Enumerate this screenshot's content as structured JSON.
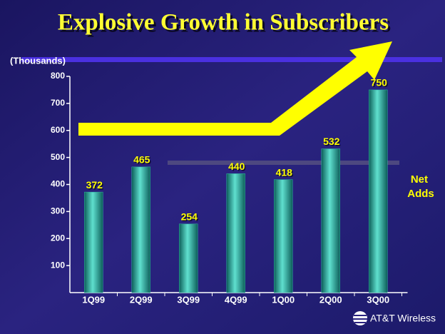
{
  "chart_data": {
    "type": "bar",
    "title": "Explosive Growth in Subscribers",
    "y_label": "(Thousands)",
    "annotation": "Net Adds",
    "logo": "AT&T Wireless",
    "categories": [
      "1Q99",
      "2Q99",
      "3Q99",
      "4Q99",
      "1Q00",
      "2Q00",
      "3Q00"
    ],
    "values": [
      372,
      465,
      254,
      440,
      418,
      532,
      750
    ],
    "color": "#2fb3a3",
    "ylim": [
      0,
      800
    ],
    "yticks": [
      100,
      200,
      300,
      400,
      500,
      600,
      700,
      800
    ],
    "grid": false
  }
}
